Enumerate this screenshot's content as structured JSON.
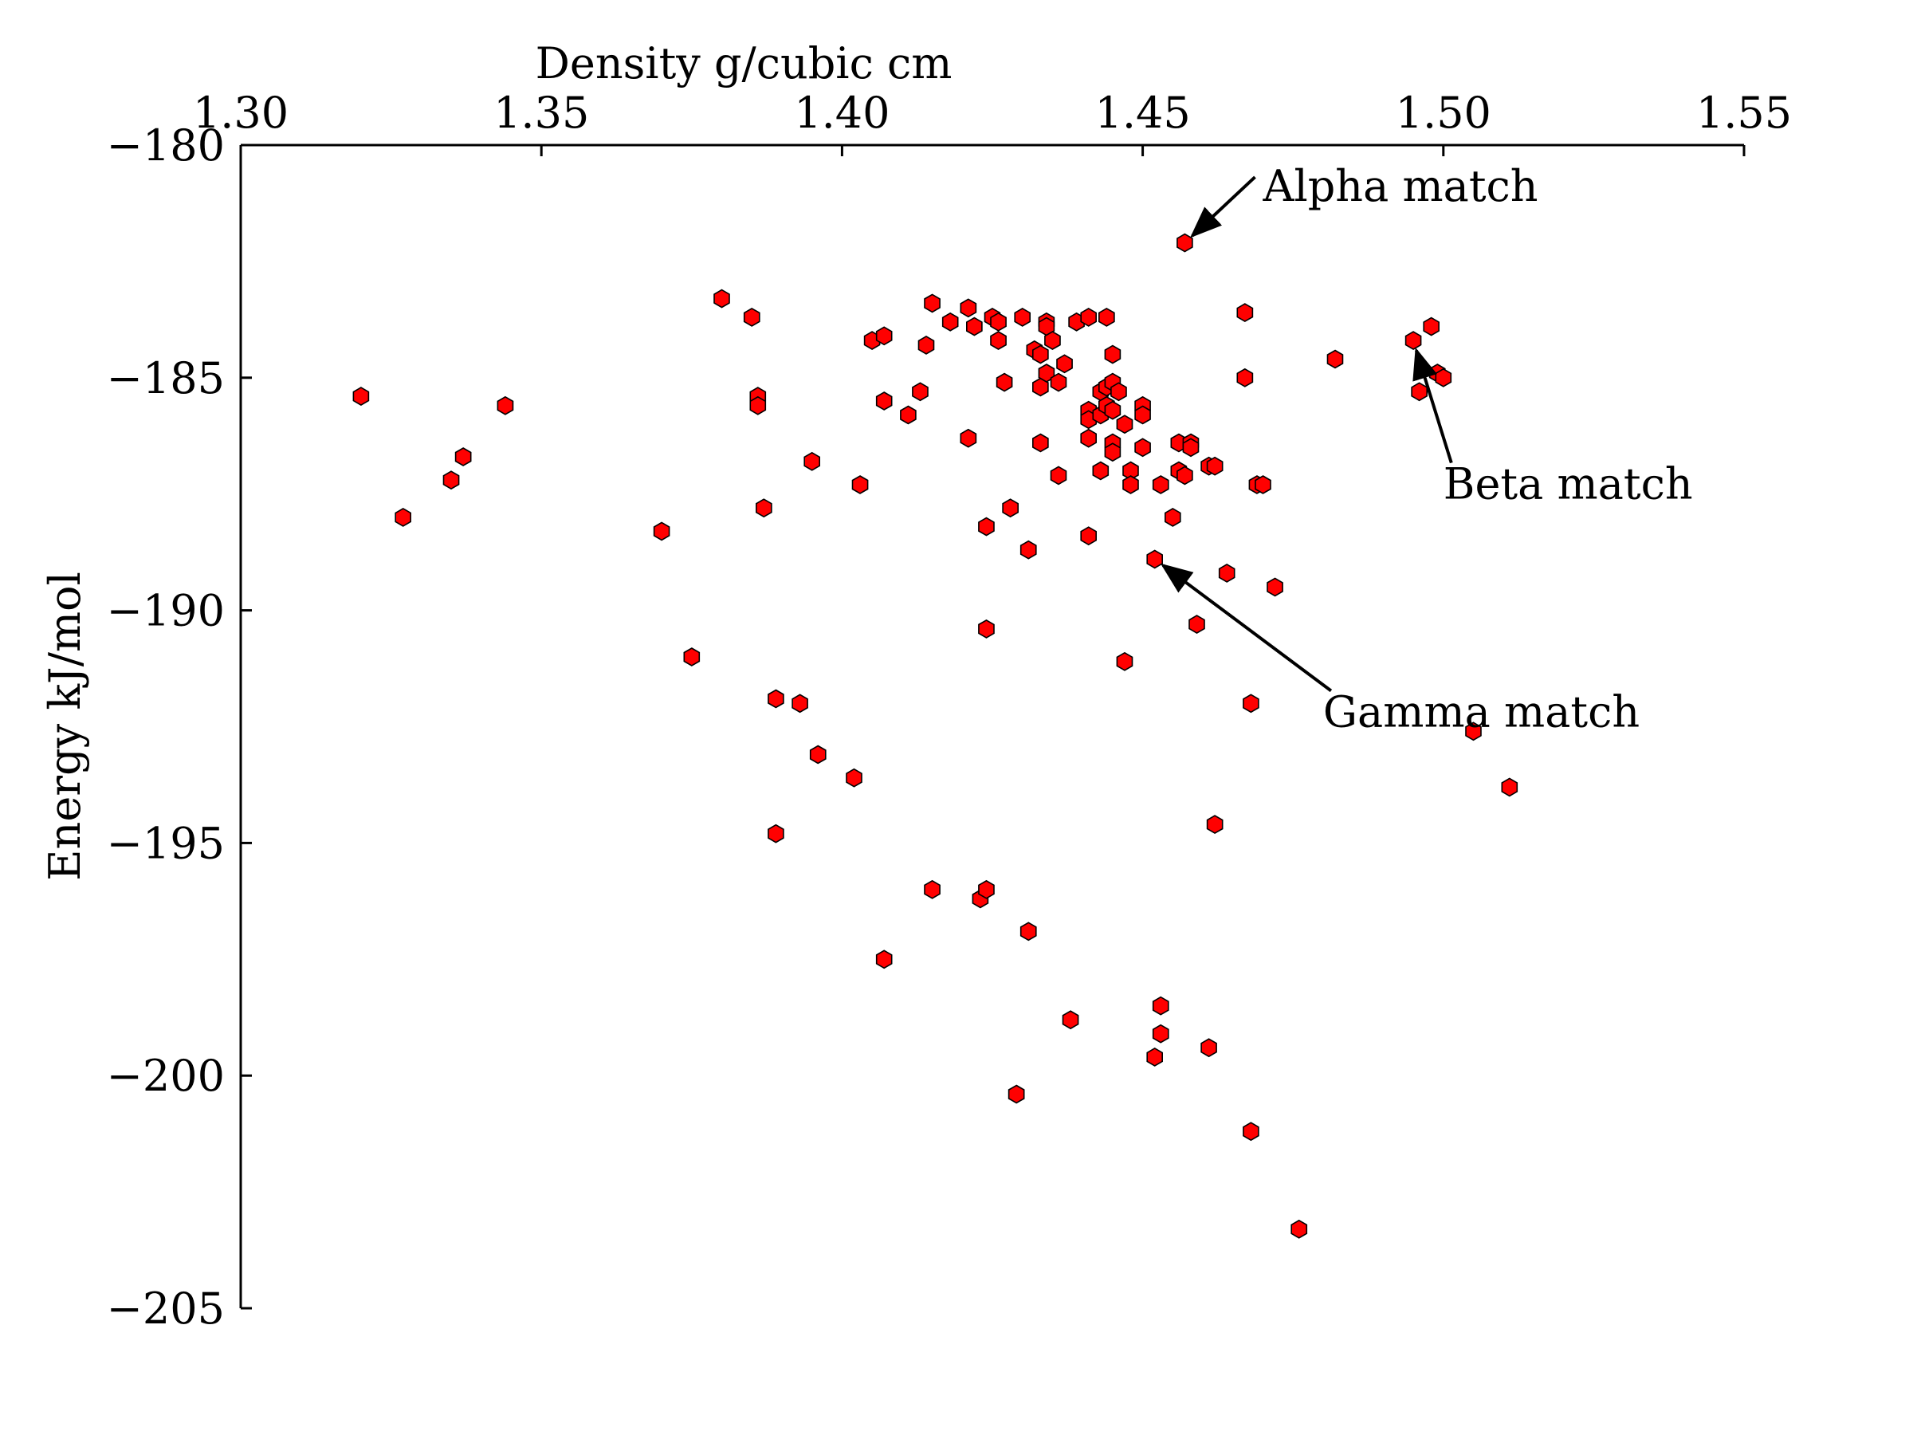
{
  "chart_data": {
    "type": "scatter",
    "title": "",
    "xlabel": "Density g/cubic cm",
    "ylabel": "Energy kJ/mol",
    "xlim": [
      1.3,
      1.55
    ],
    "ylim": [
      -205,
      -180
    ],
    "x_axis_position": "top",
    "grid": false,
    "x_ticks": [
      1.3,
      1.35,
      1.4,
      1.45,
      1.5,
      1.55
    ],
    "x_tick_labels": [
      "1.30",
      "1.35",
      "1.40",
      "1.45",
      "1.50",
      "1.55"
    ],
    "y_ticks": [
      -180,
      -185,
      -190,
      -195,
      -200,
      -205
    ],
    "y_tick_labels": [
      "−180",
      "−185",
      "−190",
      "−195",
      "−200",
      "−205"
    ],
    "marker": "hexagon",
    "marker_color": "#ff0000",
    "marker_edge_color": "#000000",
    "points": [
      [
        1.32,
        -185.4
      ],
      [
        1.327,
        -188.0
      ],
      [
        1.335,
        -187.2
      ],
      [
        1.337,
        -186.7
      ],
      [
        1.344,
        -185.6
      ],
      [
        1.37,
        -188.3
      ],
      [
        1.375,
        -191.0
      ],
      [
        1.38,
        -183.3
      ],
      [
        1.385,
        -183.7
      ],
      [
        1.386,
        -185.4
      ],
      [
        1.386,
        -185.6
      ],
      [
        1.387,
        -187.8
      ],
      [
        1.389,
        -191.9
      ],
      [
        1.389,
        -194.8
      ],
      [
        1.393,
        -192.0
      ],
      [
        1.395,
        -186.8
      ],
      [
        1.396,
        -193.1
      ],
      [
        1.402,
        -193.6
      ],
      [
        1.403,
        -187.3
      ],
      [
        1.405,
        -184.2
      ],
      [
        1.407,
        -184.1
      ],
      [
        1.407,
        -185.5
      ],
      [
        1.407,
        -197.5
      ],
      [
        1.411,
        -185.8
      ],
      [
        1.413,
        -185.3
      ],
      [
        1.414,
        -184.3
      ],
      [
        1.415,
        -183.4
      ],
      [
        1.415,
        -196.0
      ],
      [
        1.418,
        -183.8
      ],
      [
        1.421,
        -183.5
      ],
      [
        1.421,
        -186.3
      ],
      [
        1.422,
        -183.9
      ],
      [
        1.423,
        -196.2
      ],
      [
        1.424,
        -188.2
      ],
      [
        1.424,
        -190.4
      ],
      [
        1.424,
        -196.0
      ],
      [
        1.425,
        -183.7
      ],
      [
        1.426,
        -183.8
      ],
      [
        1.426,
        -184.2
      ],
      [
        1.427,
        -185.1
      ],
      [
        1.428,
        -187.8
      ],
      [
        1.429,
        -200.4
      ],
      [
        1.43,
        -183.7
      ],
      [
        1.431,
        -188.7
      ],
      [
        1.431,
        -196.9
      ],
      [
        1.432,
        -184.4
      ],
      [
        1.433,
        -184.5
      ],
      [
        1.433,
        -185.2
      ],
      [
        1.433,
        -186.4
      ],
      [
        1.434,
        -183.8
      ],
      [
        1.434,
        -183.9
      ],
      [
        1.434,
        -184.9
      ],
      [
        1.435,
        -184.2
      ],
      [
        1.436,
        -185.1
      ],
      [
        1.436,
        -187.1
      ],
      [
        1.437,
        -184.7
      ],
      [
        1.438,
        -198.8
      ],
      [
        1.439,
        -183.8
      ],
      [
        1.441,
        -183.7
      ],
      [
        1.441,
        -185.7
      ],
      [
        1.441,
        -185.9
      ],
      [
        1.441,
        -186.3
      ],
      [
        1.441,
        -188.4
      ],
      [
        1.443,
        -185.3
      ],
      [
        1.443,
        -185.8
      ],
      [
        1.443,
        -187.0
      ],
      [
        1.444,
        -183.7
      ],
      [
        1.444,
        -185.2
      ],
      [
        1.444,
        -185.6
      ],
      [
        1.445,
        -185.1
      ],
      [
        1.445,
        -185.7
      ],
      [
        1.445,
        -186.4
      ],
      [
        1.445,
        -186.6
      ],
      [
        1.445,
        -184.5
      ],
      [
        1.446,
        -185.3
      ],
      [
        1.447,
        -186.0
      ],
      [
        1.447,
        -191.1
      ],
      [
        1.448,
        -187.0
      ],
      [
        1.448,
        -187.3
      ],
      [
        1.45,
        -185.6
      ],
      [
        1.45,
        -185.8
      ],
      [
        1.45,
        -186.5
      ],
      [
        1.452,
        -188.9
      ],
      [
        1.452,
        -199.6
      ],
      [
        1.453,
        -187.3
      ],
      [
        1.453,
        -198.5
      ],
      [
        1.453,
        -199.1
      ],
      [
        1.455,
        -188.0
      ],
      [
        1.456,
        -186.4
      ],
      [
        1.456,
        -187.0
      ],
      [
        1.457,
        -182.1
      ],
      [
        1.457,
        -187.1
      ],
      [
        1.458,
        -186.4
      ],
      [
        1.458,
        -186.5
      ],
      [
        1.459,
        -190.3
      ],
      [
        1.461,
        -186.9
      ],
      [
        1.461,
        -199.4
      ],
      [
        1.462,
        -186.9
      ],
      [
        1.462,
        -194.6
      ],
      [
        1.464,
        -189.2
      ],
      [
        1.467,
        -183.6
      ],
      [
        1.467,
        -185.0
      ],
      [
        1.468,
        -192.0
      ],
      [
        1.468,
        -201.2
      ],
      [
        1.469,
        -187.3
      ],
      [
        1.47,
        -187.3
      ],
      [
        1.472,
        -189.5
      ],
      [
        1.476,
        -203.3
      ],
      [
        1.482,
        -184.6
      ],
      [
        1.495,
        -184.2
      ],
      [
        1.496,
        -185.3
      ],
      [
        1.498,
        -183.9
      ],
      [
        1.499,
        -184.9
      ],
      [
        1.5,
        -185.0
      ],
      [
        1.505,
        -192.6
      ],
      [
        1.511,
        -193.8
      ]
    ],
    "annotations": [
      {
        "text": "Alpha match",
        "point": [
          1.457,
          -182.1
        ],
        "text_pos": [
          1.47,
          -181.2
        ]
      },
      {
        "text": "Beta match",
        "point": [
          1.495,
          -184.2
        ],
        "text_pos": [
          1.5,
          -187.6
        ]
      },
      {
        "text": "Gamma match",
        "point": [
          1.452,
          -188.9
        ],
        "text_pos": [
          1.48,
          -192.5
        ]
      }
    ]
  }
}
